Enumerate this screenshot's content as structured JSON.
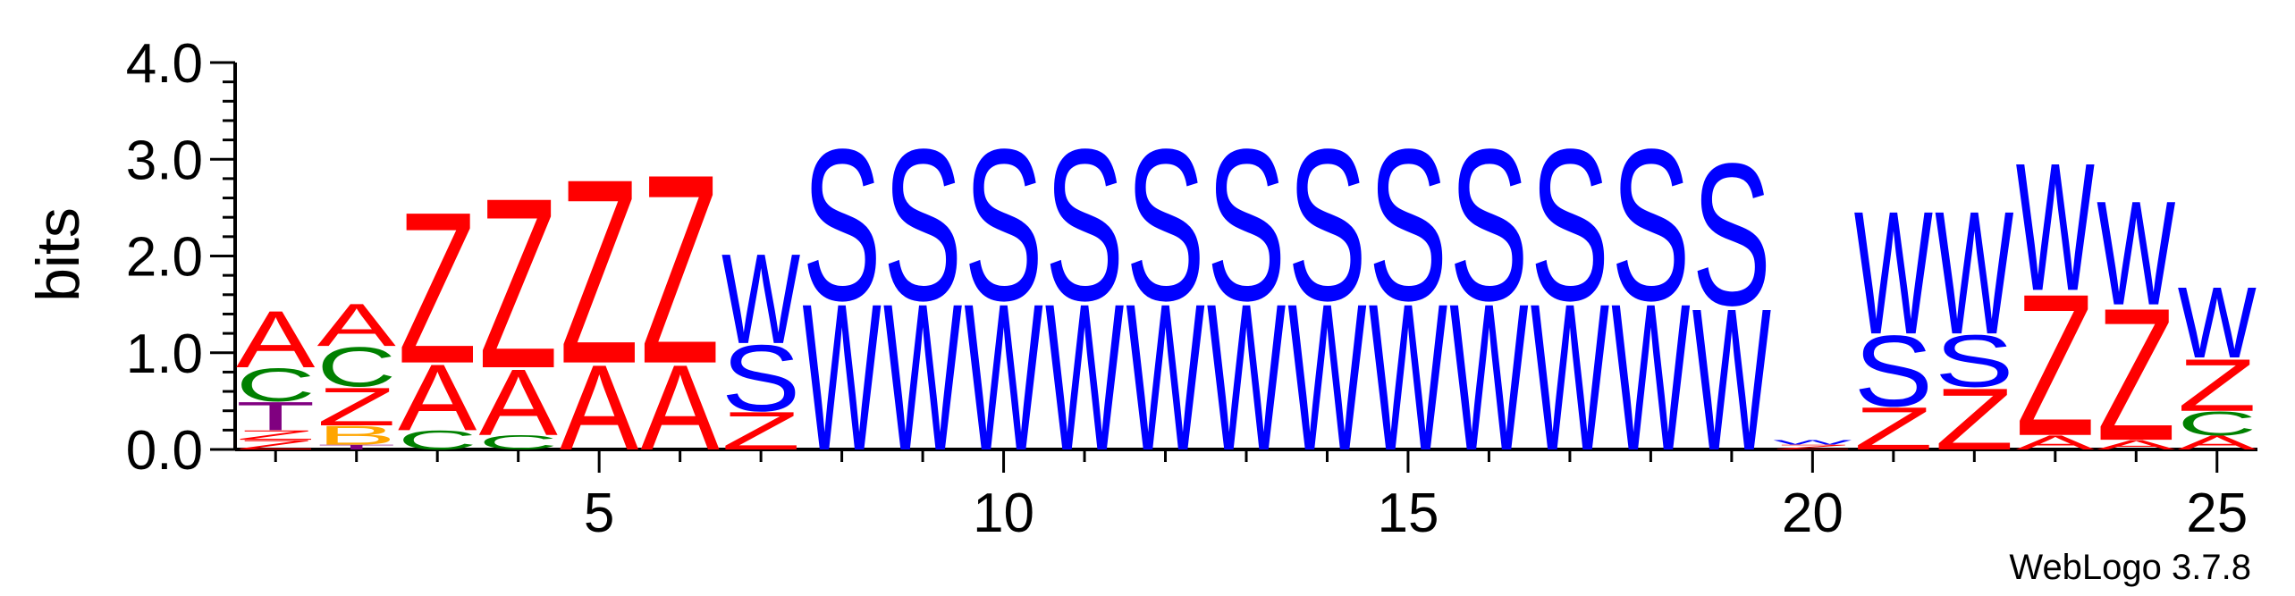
{
  "chart_data": {
    "type": "sequence-logo",
    "ylabel": "bits",
    "xlabel": "",
    "ylim": [
      0,
      4.0
    ],
    "y_ticks": [
      "0.0",
      "1.0",
      "2.0",
      "3.0",
      "4.0"
    ],
    "x_ticks": [
      "5",
      "10",
      "15",
      "20",
      "25"
    ],
    "x_range": [
      1,
      25
    ],
    "credit": "WebLogo 3.7.8",
    "colors": {
      "Z": "#ff0000",
      "A": "#ff0000",
      "S": "#0000ff",
      "W": "#0000ff",
      "C": "#008000",
      "T": "#800080",
      "B": "#ffa500"
    },
    "positions": [
      {
        "pos": 1,
        "stack": [
          [
            "Z",
            0.1
          ],
          [
            "Z",
            0.1
          ],
          [
            "T",
            0.3
          ],
          [
            "C",
            0.35
          ],
          [
            "A",
            0.6
          ]
        ]
      },
      {
        "pos": 2,
        "stack": [
          [
            "T",
            0.05
          ],
          [
            "B",
            0.2
          ],
          [
            "Z",
            0.4
          ],
          [
            "C",
            0.42
          ],
          [
            "A",
            0.45
          ]
        ]
      },
      {
        "pos": 3,
        "stack": [
          [
            "C",
            0.2
          ],
          [
            "A",
            0.7
          ],
          [
            "Z",
            1.6
          ]
        ]
      },
      {
        "pos": 4,
        "stack": [
          [
            "C",
            0.15
          ],
          [
            "A",
            0.7
          ],
          [
            "Z",
            1.8
          ]
        ]
      },
      {
        "pos": 5,
        "stack": [
          [
            "A",
            0.9
          ],
          [
            "Z",
            1.95
          ]
        ]
      },
      {
        "pos": 6,
        "stack": [
          [
            "A",
            0.9
          ],
          [
            "Z",
            2.0
          ]
        ]
      },
      {
        "pos": 7,
        "stack": [
          [
            "Z",
            0.4
          ],
          [
            "S",
            0.7
          ],
          [
            "W",
            0.95
          ]
        ]
      },
      {
        "pos": 8,
        "stack": [
          [
            "W",
            1.55
          ],
          [
            "S",
            1.6
          ]
        ]
      },
      {
        "pos": 9,
        "stack": [
          [
            "W",
            1.55
          ],
          [
            "S",
            1.6
          ]
        ]
      },
      {
        "pos": 10,
        "stack": [
          [
            "W",
            1.55
          ],
          [
            "S",
            1.6
          ]
        ]
      },
      {
        "pos": 11,
        "stack": [
          [
            "W",
            1.55
          ],
          [
            "S",
            1.6
          ]
        ]
      },
      {
        "pos": 12,
        "stack": [
          [
            "W",
            1.55
          ],
          [
            "S",
            1.6
          ]
        ]
      },
      {
        "pos": 13,
        "stack": [
          [
            "W",
            1.55
          ],
          [
            "S",
            1.6
          ]
        ]
      },
      {
        "pos": 14,
        "stack": [
          [
            "W",
            1.55
          ],
          [
            "S",
            1.6
          ]
        ]
      },
      {
        "pos": 15,
        "stack": [
          [
            "W",
            1.55
          ],
          [
            "S",
            1.6
          ]
        ]
      },
      {
        "pos": 16,
        "stack": [
          [
            "W",
            1.55
          ],
          [
            "S",
            1.6
          ]
        ]
      },
      {
        "pos": 17,
        "stack": [
          [
            "W",
            1.55
          ],
          [
            "S",
            1.6
          ]
        ]
      },
      {
        "pos": 18,
        "stack": [
          [
            "W",
            1.55
          ],
          [
            "S",
            1.6
          ]
        ]
      },
      {
        "pos": 19,
        "stack": [
          [
            "W",
            1.5
          ],
          [
            "S",
            1.5
          ]
        ]
      },
      {
        "pos": 20,
        "stack": [
          [
            "Z",
            0.05
          ],
          [
            "W",
            0.05
          ]
        ]
      },
      {
        "pos": 21,
        "stack": [
          [
            "Z",
            0.45
          ],
          [
            "S",
            0.75
          ],
          [
            "W",
            1.3
          ]
        ]
      },
      {
        "pos": 22,
        "stack": [
          [
            "Z",
            0.65
          ],
          [
            "S",
            0.55
          ],
          [
            "W",
            1.3
          ]
        ]
      },
      {
        "pos": 23,
        "stack": [
          [
            "A",
            0.15
          ],
          [
            "Z",
            1.5
          ],
          [
            "W",
            1.35
          ]
        ]
      },
      {
        "pos": 24,
        "stack": [
          [
            "A",
            0.1
          ],
          [
            "Z",
            1.4
          ],
          [
            "W",
            1.1
          ]
        ]
      },
      {
        "pos": 25,
        "stack": [
          [
            "A",
            0.15
          ],
          [
            "C",
            0.25
          ],
          [
            "Z",
            0.55
          ],
          [
            "W",
            0.75
          ]
        ]
      }
    ]
  }
}
